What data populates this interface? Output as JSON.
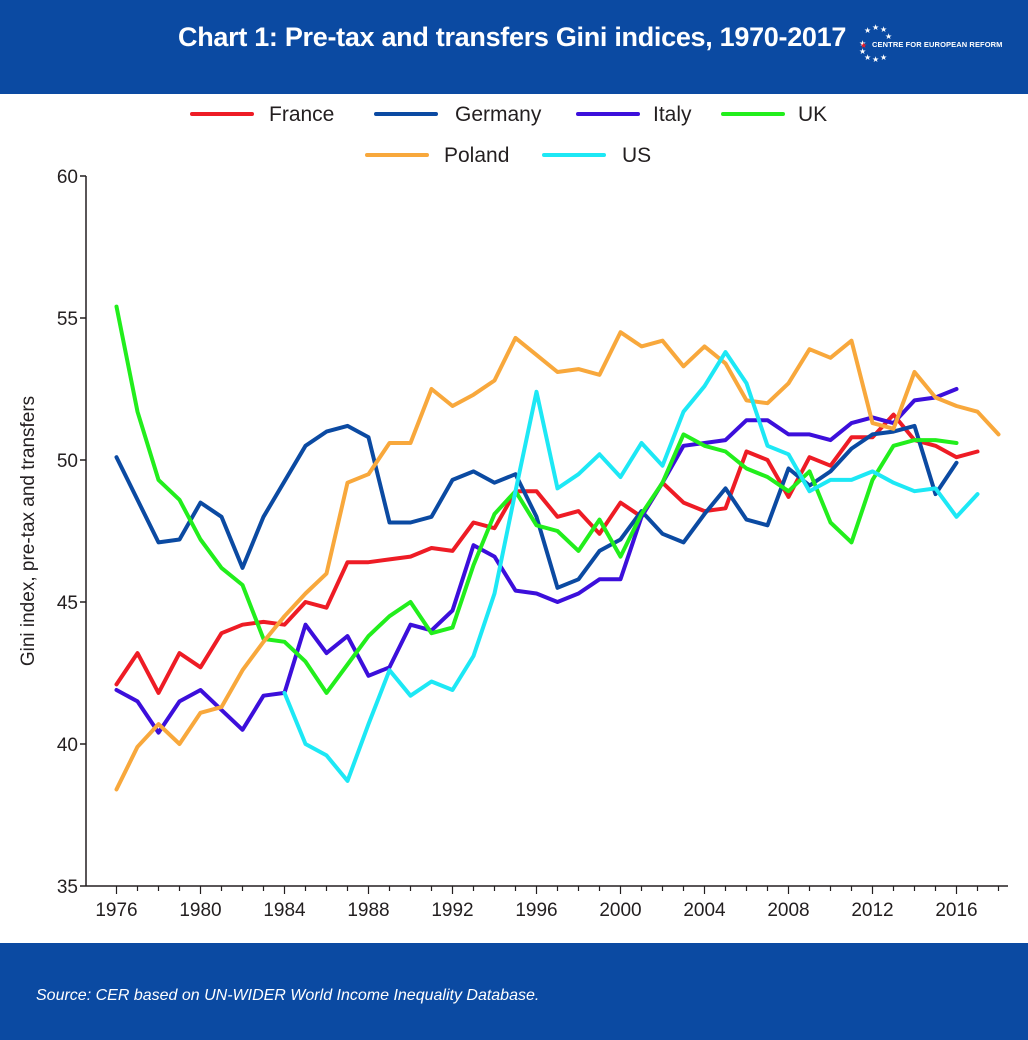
{
  "header": {
    "title": "Chart 1: Pre-tax and transfers Gini indices, 1970-2017",
    "logo_text": "CENTRE FOR EUROPEAN REFORM",
    "background": "#0b4aa2"
  },
  "footer": {
    "source": "Source:  CER based on UN-WIDER World Income Inequality Database."
  },
  "chart_data": {
    "type": "line",
    "title": "Chart 1: Pre-tax and transfers Gini indices, 1970-2017",
    "xlabel": "",
    "ylabel": "Gini index, pre-tax and transfers",
    "xlim": [
      1975,
      2018.5
    ],
    "ylim": [
      35,
      60
    ],
    "xticks": [
      1976,
      1980,
      1984,
      1988,
      1992,
      1996,
      2000,
      2004,
      2008,
      2012,
      2016
    ],
    "yticks": [
      35,
      40,
      45,
      50,
      55,
      60
    ],
    "legend": "top",
    "grid": false,
    "series": [
      {
        "name": "France",
        "color": "#ee1c25",
        "points": [
          [
            1976,
            42.1
          ],
          [
            1977,
            43.2
          ],
          [
            1978,
            41.8
          ],
          [
            1979,
            43.2
          ],
          [
            1980,
            42.7
          ],
          [
            1981,
            43.9
          ],
          [
            1982,
            44.2
          ],
          [
            1983,
            44.3
          ],
          [
            1984,
            44.2
          ],
          [
            1985,
            45.0
          ],
          [
            1986,
            44.8
          ],
          [
            1987,
            46.4
          ],
          [
            1988,
            46.4
          ],
          [
            1989,
            46.5
          ],
          [
            1990,
            46.6
          ],
          [
            1991,
            46.9
          ],
          [
            1992,
            46.8
          ],
          [
            1993,
            47.8
          ],
          [
            1994,
            47.6
          ],
          [
            1995,
            48.9
          ],
          [
            1996,
            48.9
          ],
          [
            1997,
            48.0
          ],
          [
            1998,
            48.2
          ],
          [
            1999,
            47.4
          ],
          [
            2000,
            48.5
          ],
          [
            2001,
            48.0
          ],
          [
            2002,
            49.2
          ],
          [
            2003,
            48.5
          ],
          [
            2004,
            48.2
          ],
          [
            2005,
            48.3
          ],
          [
            2006,
            50.3
          ],
          [
            2007,
            50.0
          ],
          [
            2008,
            48.7
          ],
          [
            2009,
            50.1
          ],
          [
            2010,
            49.8
          ],
          [
            2011,
            50.8
          ],
          [
            2012,
            50.8
          ],
          [
            2013,
            51.6
          ],
          [
            2014,
            50.7
          ],
          [
            2015,
            50.5
          ],
          [
            2016,
            50.1
          ],
          [
            2017,
            50.3
          ]
        ]
      },
      {
        "name": "Germany",
        "color": "#0b4aa2",
        "points": [
          [
            1976,
            50.1
          ],
          [
            1978,
            47.1
          ],
          [
            1979,
            47.2
          ],
          [
            1980,
            48.5
          ],
          [
            1981,
            48.0
          ],
          [
            1982,
            46.2
          ],
          [
            1983,
            48.0
          ],
          [
            1985,
            50.5
          ],
          [
            1986,
            51.0
          ],
          [
            1987,
            51.2
          ],
          [
            1988,
            50.8
          ],
          [
            1989,
            47.8
          ],
          [
            1990,
            47.8
          ],
          [
            1991,
            48.0
          ],
          [
            1992,
            49.3
          ],
          [
            1993,
            49.6
          ],
          [
            1994,
            49.2
          ],
          [
            1995,
            49.5
          ],
          [
            1996,
            48.0
          ],
          [
            1997,
            45.5
          ],
          [
            1998,
            45.8
          ],
          [
            1999,
            46.8
          ],
          [
            2000,
            47.2
          ],
          [
            2001,
            48.2
          ],
          [
            2002,
            47.4
          ],
          [
            2003,
            47.1
          ],
          [
            2004,
            48.1
          ],
          [
            2005,
            49.0
          ],
          [
            2006,
            47.9
          ],
          [
            2007,
            47.7
          ],
          [
            2008,
            49.7
          ],
          [
            2009,
            49.1
          ],
          [
            2010,
            49.6
          ],
          [
            2011,
            50.4
          ],
          [
            2012,
            50.9
          ],
          [
            2013,
            51.0
          ],
          [
            2014,
            51.2
          ],
          [
            2015,
            48.8
          ],
          [
            2016,
            49.9
          ]
        ]
      },
      {
        "name": "Italy",
        "color": "#3c0fdb",
        "points": [
          [
            1976,
            41.9
          ],
          [
            1977,
            41.5
          ],
          [
            1978,
            40.4
          ],
          [
            1979,
            41.5
          ],
          [
            1980,
            41.9
          ],
          [
            1981,
            41.2
          ],
          [
            1982,
            40.5
          ],
          [
            1983,
            41.7
          ],
          [
            1984,
            41.8
          ],
          [
            1985,
            44.2
          ],
          [
            1986,
            43.2
          ],
          [
            1987,
            43.8
          ],
          [
            1988,
            42.4
          ],
          [
            1989,
            42.7
          ],
          [
            1990,
            44.2
          ],
          [
            1991,
            44.0
          ],
          [
            1992,
            44.7
          ],
          [
            1993,
            47.0
          ],
          [
            1994,
            46.6
          ],
          [
            1995,
            45.4
          ],
          [
            1996,
            45.3
          ],
          [
            1997,
            45.0
          ],
          [
            1998,
            45.3
          ],
          [
            1999,
            45.8
          ],
          [
            2000,
            45.8
          ],
          [
            2001,
            48.0
          ],
          [
            2002,
            49.2
          ],
          [
            2003,
            50.5
          ],
          [
            2004,
            50.6
          ],
          [
            2005,
            50.7
          ],
          [
            2006,
            51.4
          ],
          [
            2007,
            51.4
          ],
          [
            2008,
            50.9
          ],
          [
            2009,
            50.9
          ],
          [
            2010,
            50.7
          ],
          [
            2011,
            51.3
          ],
          [
            2012,
            51.5
          ],
          [
            2013,
            51.3
          ],
          [
            2014,
            52.1
          ],
          [
            2015,
            52.2
          ],
          [
            2016,
            52.5
          ]
        ]
      },
      {
        "name": "UK",
        "color": "#22ee1c",
        "points": [
          [
            1976,
            55.4
          ],
          [
            1977,
            51.7
          ],
          [
            1978,
            49.3
          ],
          [
            1979,
            48.6
          ],
          [
            1980,
            47.2
          ],
          [
            1981,
            46.2
          ],
          [
            1982,
            45.6
          ],
          [
            1983,
            43.7
          ],
          [
            1984,
            43.6
          ],
          [
            1985,
            42.9
          ],
          [
            1986,
            41.8
          ],
          [
            1987,
            42.8
          ],
          [
            1988,
            43.8
          ],
          [
            1989,
            44.5
          ],
          [
            1990,
            45.0
          ],
          [
            1991,
            43.9
          ],
          [
            1992,
            44.1
          ],
          [
            1993,
            46.3
          ],
          [
            1994,
            48.1
          ],
          [
            1995,
            48.9
          ],
          [
            1996,
            47.7
          ],
          [
            1997,
            47.5
          ],
          [
            1998,
            46.8
          ],
          [
            1999,
            47.9
          ],
          [
            2000,
            46.6
          ],
          [
            2001,
            48.1
          ],
          [
            2002,
            49.2
          ],
          [
            2003,
            50.9
          ],
          [
            2004,
            50.5
          ],
          [
            2005,
            50.3
          ],
          [
            2006,
            49.7
          ],
          [
            2007,
            49.4
          ],
          [
            2008,
            48.9
          ],
          [
            2009,
            49.6
          ],
          [
            2010,
            47.8
          ],
          [
            2011,
            47.1
          ],
          [
            2012,
            49.3
          ],
          [
            2013,
            50.5
          ],
          [
            2014,
            50.7
          ],
          [
            2015,
            50.7
          ],
          [
            2016,
            50.6
          ]
        ]
      },
      {
        "name": "Poland",
        "color": "#f8a83c",
        "points": [
          [
            1976,
            38.4
          ],
          [
            1977,
            39.9
          ],
          [
            1978,
            40.7
          ],
          [
            1979,
            40.0
          ],
          [
            1980,
            41.1
          ],
          [
            1981,
            41.3
          ],
          [
            1982,
            42.6
          ],
          [
            1983,
            43.6
          ],
          [
            1984,
            44.5
          ],
          [
            1985,
            45.3
          ],
          [
            1986,
            46.0
          ],
          [
            1987,
            49.2
          ],
          [
            1988,
            49.5
          ],
          [
            1989,
            50.6
          ],
          [
            1990,
            50.6
          ],
          [
            1991,
            52.5
          ],
          [
            1992,
            51.9
          ],
          [
            1993,
            52.3
          ],
          [
            1994,
            52.8
          ],
          [
            1995,
            54.3
          ],
          [
            1996,
            53.7
          ],
          [
            1997,
            53.1
          ],
          [
            1998,
            53.2
          ],
          [
            1999,
            53.0
          ],
          [
            2000,
            54.5
          ],
          [
            2001,
            54.0
          ],
          [
            2002,
            54.2
          ],
          [
            2003,
            53.3
          ],
          [
            2004,
            54.0
          ],
          [
            2005,
            53.4
          ],
          [
            2006,
            52.1
          ],
          [
            2007,
            52.0
          ],
          [
            2008,
            52.7
          ],
          [
            2009,
            53.9
          ],
          [
            2010,
            53.6
          ],
          [
            2011,
            54.2
          ],
          [
            2012,
            51.3
          ],
          [
            2013,
            51.1
          ],
          [
            2014,
            53.1
          ],
          [
            2015,
            52.2
          ],
          [
            2016,
            51.9
          ],
          [
            2017,
            51.7
          ],
          [
            2018,
            50.9
          ]
        ]
      },
      {
        "name": "US",
        "color": "#1de8f5",
        "points": [
          [
            1984,
            41.8
          ],
          [
            1985,
            40.0
          ],
          [
            1986,
            39.6
          ],
          [
            1987,
            38.7
          ],
          [
            1988,
            40.7
          ],
          [
            1989,
            42.6
          ],
          [
            1990,
            41.7
          ],
          [
            1991,
            42.2
          ],
          [
            1992,
            41.9
          ],
          [
            1993,
            43.1
          ],
          [
            1994,
            45.3
          ],
          [
            1995,
            48.9
          ],
          [
            1996,
            52.4
          ],
          [
            1997,
            49.0
          ],
          [
            1998,
            49.5
          ],
          [
            1999,
            50.2
          ],
          [
            2000,
            49.4
          ],
          [
            2001,
            50.6
          ],
          [
            2002,
            49.8
          ],
          [
            2003,
            51.7
          ],
          [
            2004,
            52.6
          ],
          [
            2005,
            53.8
          ],
          [
            2006,
            52.7
          ],
          [
            2007,
            50.5
          ],
          [
            2008,
            50.2
          ],
          [
            2009,
            48.9
          ],
          [
            2010,
            49.3
          ],
          [
            2011,
            49.3
          ],
          [
            2012,
            49.6
          ],
          [
            2013,
            49.2
          ],
          [
            2014,
            48.9
          ],
          [
            2015,
            49.0
          ],
          [
            2016,
            48.0
          ],
          [
            2017,
            48.8
          ]
        ]
      }
    ]
  }
}
